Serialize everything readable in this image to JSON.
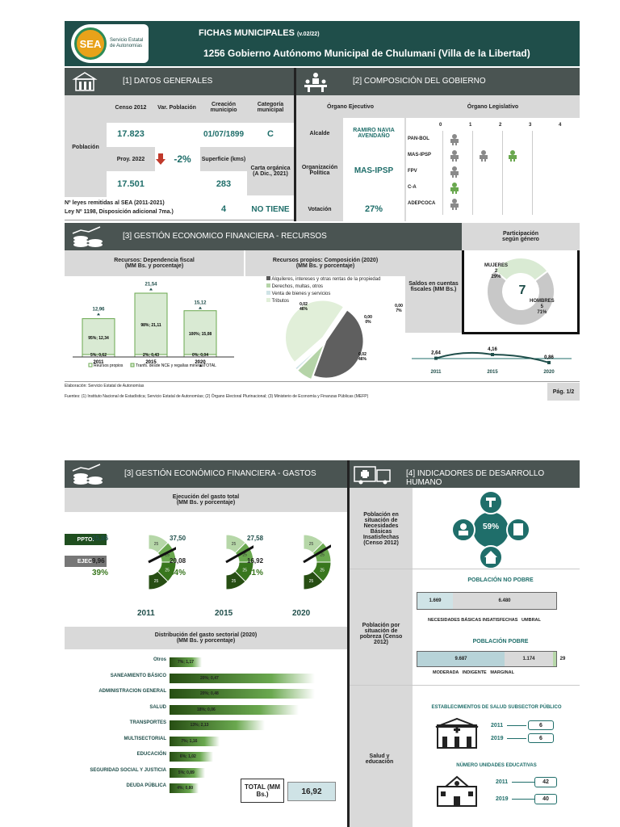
{
  "header": {
    "title": "FICHAS MUNICIPALES",
    "version": "(v.02/22)",
    "entity": "1256 Gobierno Autónomo Municipal de Chulumani (Villa de la Libertad)",
    "logo_text": "SEA",
    "logo_sub1": "Servicio Estatal",
    "logo_sub2": "de Autonomías"
  },
  "s1": {
    "title": "[1] DATOS GENERALES",
    "col_censo": "Censo 2012",
    "col_var": "Var. Población",
    "col_creacion": "Creación municipio",
    "col_categoria": "Categoría municipal",
    "row_poblacion": "Población",
    "censo_value": "17.823",
    "proy_label": "Proy. 2022",
    "proy_value": "17.501",
    "var_value": "-2%",
    "creacion_value": "01/07/1899",
    "categoria_value": "C",
    "superficie_label": "Superficie (kms)",
    "superficie_value": "283",
    "carta_label": "Carta orgánica (A Dic., 2021)",
    "carta_value": "NO TIENE",
    "leyes_label1": "Nº leyes remitidas al SEA (2011-2021)",
    "leyes_label2": "Ley Nº 1198, Disposición adicional 7ma.)",
    "leyes_value": "4"
  },
  "s2": {
    "title": "[2] COMPOSICIÓN DEL GOBIERNO",
    "ejecutivo": "Órgano Ejecutivo",
    "legislativo": "Órgano Legislativo",
    "alcalde_label": "Alcalde",
    "alcalde_value": "RAMIRO NAVIA AVENDAÑO",
    "org_label": "Organización Política",
    "org_value": "MAS-IPSP",
    "votacion_label": "Votación",
    "votacion_value": "27%",
    "scale": [
      "0",
      "1",
      "2",
      "3",
      "4"
    ],
    "parties": [
      "PAN-BOL",
      "MAS-IPSP",
      "FPV",
      "C-A",
      "ADEPCOCA"
    ]
  },
  "s3": {
    "title": "[3] GESTIÓN ECONOMICO FINANCIERA - RECURSOS",
    "dep_title1": "Recursos: Dependencia fiscal",
    "dep_title2": "(MM Bs. y porcentaje)",
    "comp_title1": "Recursos propios: Composición (2020)",
    "comp_title2": "(MM Bs. y porcentaje)",
    "saldos_label": "Saldos en cuentas fiscales (MM Bs.)",
    "part_title1": "Participación",
    "part_title2": "según género",
    "part_total": "7",
    "mujeres_label": "MUJERES",
    "mujeres_n": "2",
    "mujeres_pct": "29%",
    "hombres_label": "HOMBRES",
    "hombres_n": "5",
    "hombres_pct": "71%",
    "pie_legend": [
      "Alquileres, intereses y otras rentas de la propiedad",
      "Derechos, multas, otros",
      "Venta de bienes y servicios",
      "Tributos"
    ],
    "pie_labels": [
      "0,02\n46%",
      "0,00\n7%",
      "0,00\n0%",
      "0,02\n46%"
    ],
    "bar_legend": [
      "Reursos propios",
      "Tranfs. desde NCE y regalías mineras",
      "TOTAL"
    ],
    "saldo_years": [
      "2011",
      "2015",
      "2020"
    ],
    "saldo_values": [
      "2,64",
      "4,16",
      "0,86"
    ]
  },
  "chart_data": [
    {
      "type": "bar",
      "title": "Recursos: Dependencia fiscal",
      "categories": [
        "2011",
        "2015",
        "2020"
      ],
      "series": [
        {
          "name": "Reursos propios",
          "values": [
            0.62,
            0.43,
            0.04
          ],
          "pct": [
            "5%",
            "2%",
            "0%"
          ]
        },
        {
          "name": "Tranfs. desde NCE y regalías mineras",
          "values": [
            12.34,
            21.11,
            15.08
          ],
          "pct": [
            "95%",
            "98%",
            "100%"
          ]
        }
      ],
      "totals": [
        12.96,
        21.54,
        15.12
      ]
    },
    {
      "type": "pie",
      "title": "Recursos propios: Composición (2020)",
      "labels": [
        "Alquileres, intereses y otras rentas de la propiedad",
        "Derechos, multas, otros",
        "Venta de bienes y servicios",
        "Tributos"
      ],
      "values": [
        0.02,
        0.0,
        0.0,
        0.02
      ],
      "pct": [
        46,
        7,
        0,
        46
      ]
    },
    {
      "type": "line",
      "title": "Saldos en cuentas fiscales",
      "x": [
        "2011",
        "2015",
        "2020"
      ],
      "values": [
        2.64,
        4.16,
        0.86
      ]
    },
    {
      "type": "pie",
      "title": "Participación según género",
      "labels": [
        "MUJERES",
        "HOMBRES"
      ],
      "values": [
        2,
        5
      ],
      "pct": [
        29,
        71
      ]
    },
    {
      "type": "bar",
      "title": "Distribución del gasto sectorial (2020)",
      "categories": [
        "Otros",
        "SANEAMIENTO BÁSICO",
        "ADMINISTRACION GENERAL",
        "SALUD",
        "TRANSPORTES",
        "MULTISECTORIAL",
        "EDUCACIÓN",
        "SEGURIDAD SOCIAL Y JUSTICIA",
        "DEUDA PÚBLICA"
      ],
      "values": [
        1.17,
        0.47,
        0.48,
        0.06,
        2.13,
        1.16,
        1.02,
        0.89,
        0.8
      ],
      "pct": [
        "7%",
        "20%",
        "20%",
        "18%",
        "13%",
        "7%",
        "6%",
        "5%",
        "4%"
      ]
    }
  ],
  "footer": {
    "elab": "Elaboración: Servicio Estatal de Autonomías",
    "fuentes": "Fuentes: (1) Instituto Nacional de Estadística; Servicio Estatal de Autonomías; (2) Órgano Electoral Plurinacional; (3) Ministerio de Economía y Finanzas Públicas (MEFP)",
    "page": "Pág. 1/2"
  },
  "s3g": {
    "title": "[3] GESTIÓN ECONÓMICO FINANCIERA - GASTOS",
    "ejec_title1": "Ejecución del gasto total",
    "ejec_title2": "(MM Bs. y porcentaje)",
    "ppto": "PPTO.",
    "ejec": "EJEC.",
    "gauge_ticks": [
      "25",
      "25",
      "25",
      "25"
    ],
    "gauges": [
      {
        "year": "2011",
        "ppto": "25,86",
        "ejec": "9,96",
        "pct": "39%"
      },
      {
        "year": "2015",
        "ppto": "37,50",
        "ejec": "20,08",
        "pct": "54%"
      },
      {
        "year": "2020",
        "ppto": "27,58",
        "ejec": "16,92",
        "pct": "61%"
      }
    ],
    "dist_title1": "Distribución del gasto sectorial (2020)",
    "dist_title2": "(MM Bs. y porcentaje)",
    "sectors": [
      {
        "name": "Otros",
        "label": "7%; 1,17"
      },
      {
        "name": "SANEAMIENTO BÁSICO",
        "label": "20%; 0,47"
      },
      {
        "name": "ADMINISTRACION GENERAL",
        "label": "20%; 0,48"
      },
      {
        "name": "SALUD",
        "label": "18%; 0,06"
      },
      {
        "name": "TRANSPORTES",
        "label": "13%; 2,13"
      },
      {
        "name": "MULTISECTORIAL",
        "label": "7%; 1,16"
      },
      {
        "name": "EDUCACIÓN",
        "label": "6%; 1,02"
      },
      {
        "name": "SEGURIDAD SOCIAL Y JUSTICIA",
        "label": "5%; 0,89"
      },
      {
        "name": "DEUDA PÚBLICA",
        "label": "4%; 0,80"
      }
    ],
    "total_label": "TOTAL (MM Bs.)",
    "total_value": "16,92"
  },
  "s4": {
    "title": "[4] INDICADORES DE DESARROLLO HUMANO",
    "nbi_label": "Población en situación de Necesidades Básicas Insatisfechas (Censo 2012)",
    "nbi_value": "59%",
    "pob_label": "Población por situación de pobreza (Censo 2012)",
    "no_pobre_title": "POBLACIÓN NO POBRE",
    "nbi_n": "1.669",
    "umbral_n": "6.480",
    "leg_nbi": "NECESIDADES BÁSICAS INSATISFECHAS",
    "leg_umbral": "UMBRAL",
    "pobre_title": "POBLACIÓN POBRE",
    "moderada_n": "9.687",
    "indigente_n": "1.174",
    "marginal_n": "29",
    "leg_moderada": "MODERADA",
    "leg_indigente": "INDIGENTE",
    "leg_marginal": "MARGINAL",
    "salud_label": "Salud y educación",
    "salud_title": "ESTABLECIMIENTOS DE SALUD SUBSECTOR PÚBLICO",
    "edu_title": "NÚMERO UNIDADES EDUCATIVAS",
    "y2011": "2011",
    "y2019": "2019",
    "salud_2011": "6",
    "salud_2019": "6",
    "edu_2011": "42",
    "edu_2019": "40"
  }
}
